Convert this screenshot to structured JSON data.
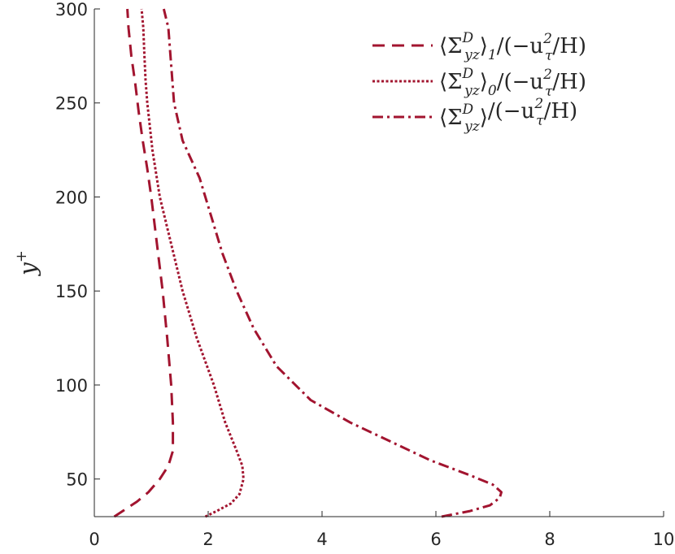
{
  "chart_data": {
    "type": "line",
    "title": "",
    "xlabel": "",
    "ylabel": "y",
    "ylabel_sup": "+",
    "xlim": [
      0,
      10
    ],
    "ylim": [
      30,
      300
    ],
    "xticks": [
      "0",
      "2",
      "4",
      "6",
      "8",
      "10"
    ],
    "yticks": [
      "50",
      "100",
      "150",
      "200",
      "250",
      "300"
    ],
    "grid": false,
    "legend_position": "top-right",
    "line_color": "#a2142f",
    "series": [
      {
        "name": "⟨Σ^D_yz⟩_1/(−u²_τ/H)",
        "name_parts": {
          "open": "⟨Σ",
          "sup": "D",
          "sub": "yz",
          "mid": "⟩",
          "sub2": "1",
          "tail_a": "/(−u",
          "sup2": "2",
          "sub3": "τ",
          "tail_b": "/H)"
        },
        "style": "dashed",
        "x": [
          0.35,
          0.55,
          0.75,
          0.95,
          1.15,
          1.3,
          1.38,
          1.38,
          1.35,
          1.28,
          1.2,
          1.1,
          1.0,
          0.93,
          0.85,
          0.78,
          0.72,
          0.65,
          0.6,
          0.58
        ],
        "y": [
          30,
          34,
          38,
          43,
          50,
          57,
          65,
          80,
          100,
          125,
          150,
          175,
          200,
          215,
          230,
          245,
          260,
          275,
          290,
          300
        ]
      },
      {
        "name": "⟨Σ^D_yz⟩_0/(−u²_τ/H)",
        "name_parts": {
          "open": "⟨Σ",
          "sup": "D",
          "sub": "yz",
          "mid": "⟩",
          "sub2": "0",
          "tail_a": "/(−u",
          "sup2": "2",
          "sub3": "τ",
          "tail_b": "/H)"
        },
        "style": "dotted",
        "x": [
          1.95,
          2.15,
          2.4,
          2.55,
          2.62,
          2.6,
          2.5,
          2.3,
          2.1,
          1.8,
          1.55,
          1.35,
          1.15,
          1.02,
          0.93,
          0.9,
          0.88,
          0.86,
          0.83
        ],
        "y": [
          30,
          33,
          37,
          42,
          50,
          57,
          65,
          80,
          100,
          125,
          150,
          175,
          200,
          225,
          250,
          262,
          275,
          290,
          300
        ]
      },
      {
        "name": "⟨Σ^D_yz⟩/(−u²_τ/H)",
        "name_parts": {
          "open": "⟨Σ",
          "sup": "D",
          "sub": "yz",
          "mid": "⟩",
          "sub2": "",
          "tail_a": "/(−u",
          "sup2": "2",
          "sub3": "τ",
          "tail_b": "/H)"
        },
        "style": "dashdot",
        "x": [
          6.1,
          6.6,
          6.95,
          7.12,
          7.15,
          7.0,
          6.6,
          5.9,
          5.2,
          4.5,
          3.8,
          3.2,
          2.8,
          2.5,
          2.25,
          2.05,
          1.85,
          1.55,
          1.4,
          1.35,
          1.3,
          1.22
        ],
        "y": [
          30,
          33,
          36,
          40,
          43,
          47,
          52,
          60,
          70,
          80,
          92,
          110,
          130,
          150,
          170,
          190,
          210,
          230,
          250,
          270,
          290,
          300
        ]
      }
    ]
  }
}
